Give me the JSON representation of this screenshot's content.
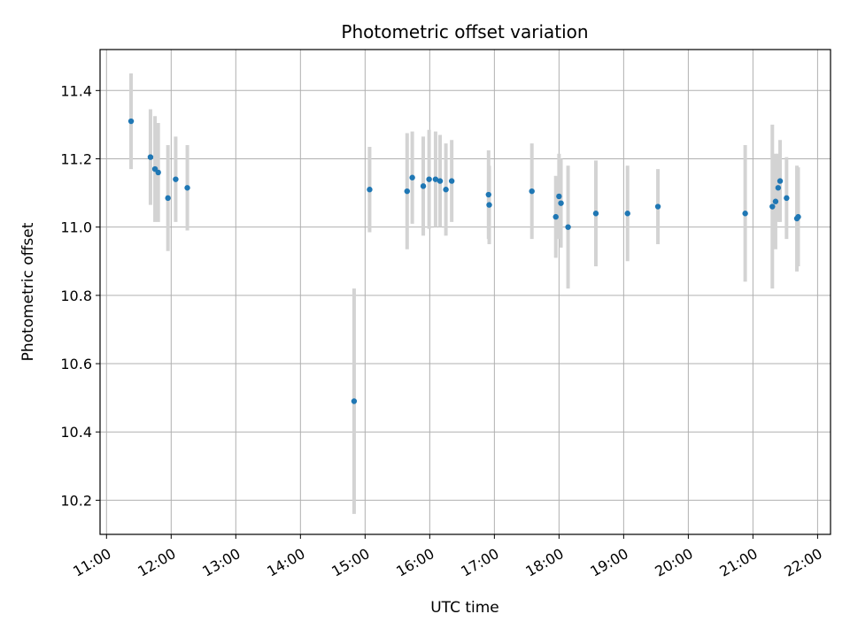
{
  "chart_data": {
    "type": "scatter",
    "title": "Photometric offset variation",
    "xlabel": "UTC time",
    "ylabel": "Photometric offset",
    "x_unit": "hours UTC",
    "xlim": [
      10.9,
      22.2
    ],
    "ylim": [
      10.1,
      11.52
    ],
    "x_ticks": [
      11,
      12,
      13,
      14,
      15,
      16,
      17,
      18,
      19,
      20,
      21,
      22
    ],
    "x_tick_labels": [
      "11:00",
      "12:00",
      "13:00",
      "14:00",
      "15:00",
      "16:00",
      "17:00",
      "18:00",
      "19:00",
      "20:00",
      "21:00",
      "22:00"
    ],
    "y_ticks": [
      10.2,
      10.4,
      10.6,
      10.8,
      11.0,
      11.2,
      11.4
    ],
    "y_tick_labels": [
      "10.2",
      "10.4",
      "10.6",
      "10.8",
      "11.0",
      "11.2",
      "11.4"
    ],
    "grid": true,
    "colors": {
      "points": "#1f77b4",
      "errorbars": "#d3d3d3",
      "grid": "#b0b0b0"
    },
    "points": [
      {
        "x": 11.38,
        "y": 11.31,
        "yerr": 0.14
      },
      {
        "x": 11.68,
        "y": 11.205,
        "yerr": 0.14
      },
      {
        "x": 11.75,
        "y": 11.17,
        "yerr": 0.155
      },
      {
        "x": 11.8,
        "y": 11.16,
        "yerr": 0.145
      },
      {
        "x": 11.95,
        "y": 11.085,
        "yerr": 0.155
      },
      {
        "x": 12.07,
        "y": 11.14,
        "yerr": 0.125
      },
      {
        "x": 12.25,
        "y": 11.115,
        "yerr": 0.125
      },
      {
        "x": 14.83,
        "y": 10.49,
        "yerr": 0.33
      },
      {
        "x": 15.07,
        "y": 11.11,
        "yerr": 0.125
      },
      {
        "x": 15.65,
        "y": 11.105,
        "yerr": 0.17
      },
      {
        "x": 15.73,
        "y": 11.145,
        "yerr": 0.135
      },
      {
        "x": 15.9,
        "y": 11.12,
        "yerr": 0.145
      },
      {
        "x": 15.99,
        "y": 11.14,
        "yerr": 0.145
      },
      {
        "x": 16.09,
        "y": 11.14,
        "yerr": 0.14
      },
      {
        "x": 16.16,
        "y": 11.135,
        "yerr": 0.135
      },
      {
        "x": 16.25,
        "y": 11.11,
        "yerr": 0.135
      },
      {
        "x": 16.34,
        "y": 11.135,
        "yerr": 0.12
      },
      {
        "x": 16.91,
        "y": 11.095,
        "yerr": 0.13
      },
      {
        "x": 16.92,
        "y": 11.065,
        "yerr": 0.115
      },
      {
        "x": 17.58,
        "y": 11.105,
        "yerr": 0.14
      },
      {
        "x": 17.95,
        "y": 11.03,
        "yerr": 0.12
      },
      {
        "x": 18.0,
        "y": 11.09,
        "yerr": 0.125
      },
      {
        "x": 18.03,
        "y": 11.07,
        "yerr": 0.13
      },
      {
        "x": 18.14,
        "y": 11.0,
        "yerr": 0.18
      },
      {
        "x": 18.57,
        "y": 11.04,
        "yerr": 0.155
      },
      {
        "x": 19.06,
        "y": 11.04,
        "yerr": 0.14
      },
      {
        "x": 19.53,
        "y": 11.06,
        "yerr": 0.11
      },
      {
        "x": 20.88,
        "y": 11.04,
        "yerr": 0.2
      },
      {
        "x": 21.3,
        "y": 11.06,
        "yerr": 0.24
      },
      {
        "x": 21.35,
        "y": 11.075,
        "yerr": 0.14
      },
      {
        "x": 21.39,
        "y": 11.115,
        "yerr": 0.1
      },
      {
        "x": 21.42,
        "y": 11.135,
        "yerr": 0.12
      },
      {
        "x": 21.52,
        "y": 11.085,
        "yerr": 0.12
      },
      {
        "x": 21.68,
        "y": 11.025,
        "yerr": 0.155
      },
      {
        "x": 21.7,
        "y": 11.03,
        "yerr": 0.145
      }
    ]
  }
}
